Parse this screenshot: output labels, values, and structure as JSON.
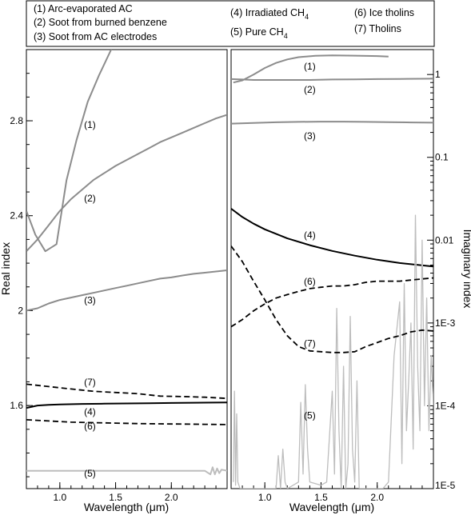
{
  "chart_data": [
    {
      "type": "line",
      "panel": "left",
      "xlabel": "Wavelength (μm)",
      "ylabel": "Real index",
      "xlim": [
        0.7,
        2.5
      ],
      "ylim": [
        1.25,
        3.1
      ],
      "x_ticks": [
        1.0,
        1.5,
        2.0
      ],
      "x_tick_labels": [
        "1.0",
        "1.5",
        "2.0"
      ],
      "y_ticks": [
        1.6,
        2.0,
        2.4,
        2.8
      ],
      "y_tick_labels": [
        "1.6",
        "2",
        "2.4",
        "2.8"
      ],
      "y_minor_step": 0.1,
      "x_minor_step": 0.1,
      "series": [
        {
          "label": "(1)",
          "color": "#8c8c8c",
          "dash": "solid",
          "width": 2,
          "x": [
            0.7,
            0.78,
            0.87,
            0.97,
            1.06,
            1.15,
            1.25,
            1.35,
            1.48
          ],
          "y": [
            2.42,
            2.32,
            2.25,
            2.28,
            2.55,
            2.72,
            2.88,
            2.99,
            3.12
          ],
          "label_pos": [
            1.27,
            2.77
          ]
        },
        {
          "label": "(2)",
          "color": "#8c8c8c",
          "dash": "solid",
          "width": 2,
          "x": [
            0.7,
            0.8,
            0.9,
            1.0,
            1.1,
            1.2,
            1.3,
            1.4,
            1.5,
            1.6,
            1.7,
            1.8,
            1.9,
            2.0,
            2.1,
            2.2,
            2.3,
            2.4,
            2.5
          ],
          "y": [
            2.25,
            2.3,
            2.36,
            2.42,
            2.47,
            2.51,
            2.55,
            2.58,
            2.61,
            2.635,
            2.66,
            2.685,
            2.71,
            2.73,
            2.75,
            2.77,
            2.79,
            2.81,
            2.825
          ],
          "label_pos": [
            1.27,
            2.46
          ]
        },
        {
          "label": "(3)",
          "color": "#8c8c8c",
          "dash": "solid",
          "width": 2,
          "x": [
            0.7,
            0.8,
            0.9,
            1.0,
            1.1,
            1.2,
            1.3,
            1.4,
            1.5,
            1.6,
            1.7,
            1.8,
            1.9,
            2.0,
            2.1,
            2.2,
            2.3,
            2.4,
            2.5
          ],
          "y": [
            2.0,
            2.01,
            2.03,
            2.045,
            2.055,
            2.065,
            2.075,
            2.085,
            2.095,
            2.105,
            2.115,
            2.125,
            2.135,
            2.14,
            2.148,
            2.155,
            2.16,
            2.165,
            2.17
          ],
          "label_pos": [
            1.27,
            2.03
          ]
        },
        {
          "label": "(4)",
          "color": "#000000",
          "dash": "solid",
          "width": 2,
          "x": [
            0.7,
            0.8,
            0.9,
            1.0,
            1.2,
            1.4,
            1.6,
            1.8,
            2.0,
            2.2,
            2.5
          ],
          "y": [
            1.59,
            1.6,
            1.603,
            1.605,
            1.607,
            1.608,
            1.609,
            1.61,
            1.611,
            1.612,
            1.613
          ],
          "label_pos": [
            1.27,
            1.56
          ]
        },
        {
          "label": "(5)",
          "color": "#bdbdbd",
          "dash": "solid",
          "width": 2,
          "x": [
            0.7,
            1.0,
            1.5,
            2.0,
            2.3,
            2.35,
            2.37,
            2.39,
            2.41,
            2.43,
            2.45,
            2.5
          ],
          "y": [
            1.325,
            1.325,
            1.325,
            1.325,
            1.325,
            1.31,
            1.34,
            1.31,
            1.335,
            1.315,
            1.33,
            1.325
          ],
          "label_pos": [
            1.27,
            1.3
          ]
        },
        {
          "label": "(6)",
          "color": "#000000",
          "dash": "dashed",
          "width": 1.8,
          "x": [
            0.7,
            0.9,
            1.1,
            1.3,
            1.5,
            1.7,
            1.9,
            2.1,
            2.3,
            2.5
          ],
          "y": [
            1.54,
            1.535,
            1.53,
            1.528,
            1.526,
            1.524,
            1.523,
            1.522,
            1.521,
            1.52
          ],
          "label_pos": [
            1.27,
            1.5
          ]
        },
        {
          "label": "(7)",
          "color": "#000000",
          "dash": "dashed",
          "width": 1.8,
          "x": [
            0.7,
            0.9,
            1.1,
            1.3,
            1.5,
            1.7,
            1.8,
            1.9,
            2.1,
            2.3,
            2.5
          ],
          "y": [
            1.69,
            1.68,
            1.67,
            1.66,
            1.655,
            1.65,
            1.645,
            1.64,
            1.638,
            1.635,
            1.63
          ],
          "label_pos": [
            1.27,
            1.685
          ]
        }
      ]
    },
    {
      "type": "line",
      "panel": "right",
      "xlabel": "Wavelength (μm)",
      "ylabel": "Imaginary index",
      "y_scale": "log",
      "xlim": [
        0.7,
        2.5
      ],
      "ylim": [
        1e-05,
        2
      ],
      "x_ticks": [
        1.0,
        1.5,
        2.0
      ],
      "x_tick_labels": [
        "1.0",
        "1.5",
        "2.0"
      ],
      "y_ticks": [
        1e-05,
        0.0001,
        0.001,
        0.01,
        0.1,
        1
      ],
      "y_tick_labels": [
        "1E-5",
        "1E-4",
        "1E-3",
        "0.01",
        "0.1",
        "1"
      ],
      "x_minor_step": 0.1,
      "series": [
        {
          "label": "(1)",
          "color": "#8c8c8c",
          "dash": "solid",
          "width": 2,
          "x": [
            0.72,
            0.8,
            0.9,
            1.0,
            1.1,
            1.2,
            1.3,
            1.45,
            1.6,
            1.8,
            2.0,
            2.1
          ],
          "y": [
            0.8,
            0.85,
            1.0,
            1.2,
            1.38,
            1.52,
            1.62,
            1.68,
            1.7,
            1.69,
            1.67,
            1.65
          ],
          "label_pos": [
            1.4,
            1.15
          ]
        },
        {
          "label": "(2)",
          "color": "#8c8c8c",
          "dash": "solid",
          "width": 2,
          "x": [
            0.7,
            0.8,
            0.9,
            1.0,
            1.2,
            1.4,
            1.6,
            1.8,
            2.0,
            2.2,
            2.5
          ],
          "y": [
            0.88,
            0.87,
            0.86,
            0.86,
            0.86,
            0.86,
            0.87,
            0.875,
            0.88,
            0.885,
            0.89
          ],
          "label_pos": [
            1.4,
            0.6
          ]
        },
        {
          "label": "(3)",
          "color": "#8c8c8c",
          "dash": "solid",
          "width": 2,
          "x": [
            0.7,
            0.9,
            1.1,
            1.3,
            1.5,
            1.7,
            1.9,
            2.1,
            2.3,
            2.5
          ],
          "y": [
            0.255,
            0.26,
            0.265,
            0.268,
            0.27,
            0.27,
            0.268,
            0.266,
            0.264,
            0.262
          ],
          "label_pos": [
            1.4,
            0.165
          ]
        },
        {
          "label": "(4)",
          "color": "#000000",
          "dash": "solid",
          "width": 2,
          "x": [
            0.7,
            0.8,
            0.9,
            1.0,
            1.2,
            1.4,
            1.6,
            1.8,
            2.0,
            2.2,
            2.5
          ],
          "y": [
            0.024,
            0.019,
            0.0158,
            0.0135,
            0.0105,
            0.0087,
            0.0074,
            0.0065,
            0.0058,
            0.0053,
            0.0048
          ],
          "label_pos": [
            1.4,
            0.0105
          ]
        },
        {
          "label": "(5)",
          "color": "#bdbdbd",
          "dash": "solid",
          "width": 1.3,
          "x": [
            0.72,
            0.73,
            0.74,
            0.75,
            0.76,
            0.78,
            0.9,
            0.95,
            1.1,
            1.12,
            1.14,
            1.16,
            1.18,
            1.2,
            1.3,
            1.32,
            1.34,
            1.36,
            1.38,
            1.4,
            1.5,
            1.55,
            1.6,
            1.62,
            1.64,
            1.66,
            1.68,
            1.7,
            1.72,
            1.74,
            1.76,
            1.78,
            1.8,
            1.82,
            1.84,
            1.9,
            2.0,
            2.05,
            2.1,
            2.15,
            2.2,
            2.22,
            2.24,
            2.26,
            2.28,
            2.3,
            2.32,
            2.34,
            2.36,
            2.38,
            2.4,
            2.42,
            2.44,
            2.46,
            2.48,
            2.5
          ],
          "y": [
            1.2e-05,
            0.00015,
            1.1e-05,
            8e-05,
            1.2e-05,
            1e-05,
            1e-05,
            1e-05,
            1e-05,
            2.5e-05,
            1e-05,
            3e-05,
            1.2e-05,
            1e-05,
            1.2e-05,
            0.00011,
            1.5e-05,
            0.00018,
            3e-05,
            1.2e-05,
            1.1e-05,
            1.2e-05,
            0.00015,
            1.5e-05,
            0.0015,
            5e-05,
            1e-05,
            0.0003,
            1e-05,
            2e-05,
            0.0012,
            3e-05,
            1.2e-05,
            0.0002,
            1e-05,
            1e-05,
            1e-05,
            1e-05,
            1.2e-05,
            0.0004,
            0.0018,
            2e-05,
            0.003,
            5e-05,
            0.0002,
            0.001,
            3e-05,
            0.02,
            0.0003,
            5e-05,
            0.01,
            0.0001,
            0.002,
            5e-05,
            0.0004,
            0.0001
          ],
          "label_pos": [
            1.4,
            7e-05
          ]
        },
        {
          "label": "(6)",
          "color": "#000000",
          "dash": "dashed",
          "width": 1.8,
          "x": [
            0.7,
            0.8,
            0.9,
            1.0,
            1.1,
            1.2,
            1.3,
            1.4,
            1.5,
            1.6,
            1.7,
            1.8,
            1.9,
            2.0,
            2.1,
            2.2,
            2.3,
            2.4,
            2.5
          ],
          "y": [
            0.0009,
            0.0011,
            0.0014,
            0.0017,
            0.002,
            0.0022,
            0.0024,
            0.0026,
            0.0027,
            0.0028,
            0.0028,
            0.0029,
            0.0031,
            0.0032,
            0.0032,
            0.0032,
            0.0033,
            0.0034,
            0.0035
          ],
          "label_pos": [
            1.4,
            0.0029
          ]
        },
        {
          "label": "(7)",
          "color": "#000000",
          "dash": "dashed",
          "width": 1.8,
          "x": [
            0.7,
            0.8,
            0.9,
            1.0,
            1.1,
            1.2,
            1.3,
            1.4,
            1.5,
            1.6,
            1.7,
            1.8,
            1.9,
            2.0,
            2.1,
            2.2,
            2.3,
            2.4,
            2.5
          ],
          "y": [
            0.0085,
            0.0055,
            0.0032,
            0.0019,
            0.0011,
            0.0007,
            0.00052,
            0.00046,
            0.00045,
            0.00044,
            0.00044,
            0.00045,
            0.00052,
            0.00058,
            0.00065,
            0.0007,
            0.00078,
            0.00082,
            0.0008
          ],
          "label_pos": [
            1.4,
            0.00052
          ]
        }
      ]
    }
  ],
  "legend": {
    "placement": "top",
    "entries": [
      "(1) Arc-evaporated AC",
      "(2) Soot from burned benzene",
      "(3) Soot from AC electrodes",
      "(4) Irradiated CH",
      "(5) Pure CH",
      "(6) Ice tholins",
      "(7) Tholins"
    ],
    "subscript": "4"
  }
}
